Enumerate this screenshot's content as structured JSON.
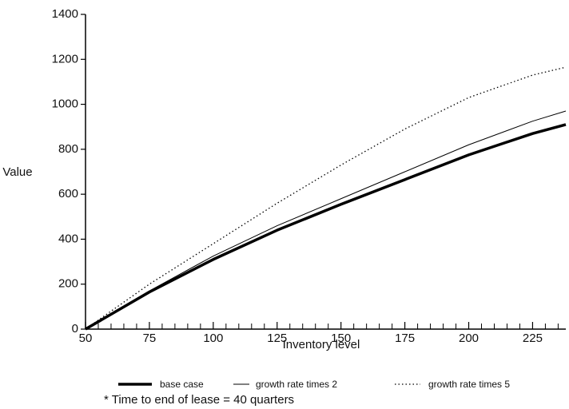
{
  "chart_data": {
    "type": "line",
    "x_label": "Inventory level",
    "y_label": "Value",
    "footnote": "* Time to end of lease = 40 quarters",
    "x": [
      50,
      75,
      100,
      125,
      150,
      175,
      200,
      225,
      238
    ],
    "series": [
      {
        "name": "base case",
        "color": "#000000",
        "width": 3.5,
        "style": "solid",
        "values": [
          0,
          165,
          310,
          440,
          555,
          665,
          775,
          870,
          910
        ]
      },
      {
        "name": "growth rate times 2",
        "color": "#000000",
        "width": 1,
        "style": "solid",
        "values": [
          0,
          170,
          325,
          460,
          580,
          700,
          820,
          925,
          970
        ]
      },
      {
        "name": "growth rate times 5",
        "color": "#000000",
        "width": 1.3,
        "style": "dotted",
        "values": [
          0,
          200,
          380,
          560,
          730,
          890,
          1030,
          1130,
          1165
        ]
      }
    ],
    "xlim": [
      50,
      238
    ],
    "ylim": [
      0,
      1400
    ],
    "xticks": [
      50,
      75,
      100,
      125,
      150,
      175,
      200,
      225
    ],
    "xminorticks": [
      55,
      60,
      65,
      70,
      80,
      85,
      90,
      95,
      105,
      110,
      115,
      120,
      130,
      135,
      140,
      145,
      155,
      160,
      165,
      170,
      180,
      185,
      190,
      195,
      205,
      210,
      215,
      220,
      230,
      235
    ],
    "yticks": [
      0,
      200,
      400,
      600,
      800,
      1000,
      1200,
      1400
    ],
    "grid": false,
    "legend": "bottom"
  }
}
